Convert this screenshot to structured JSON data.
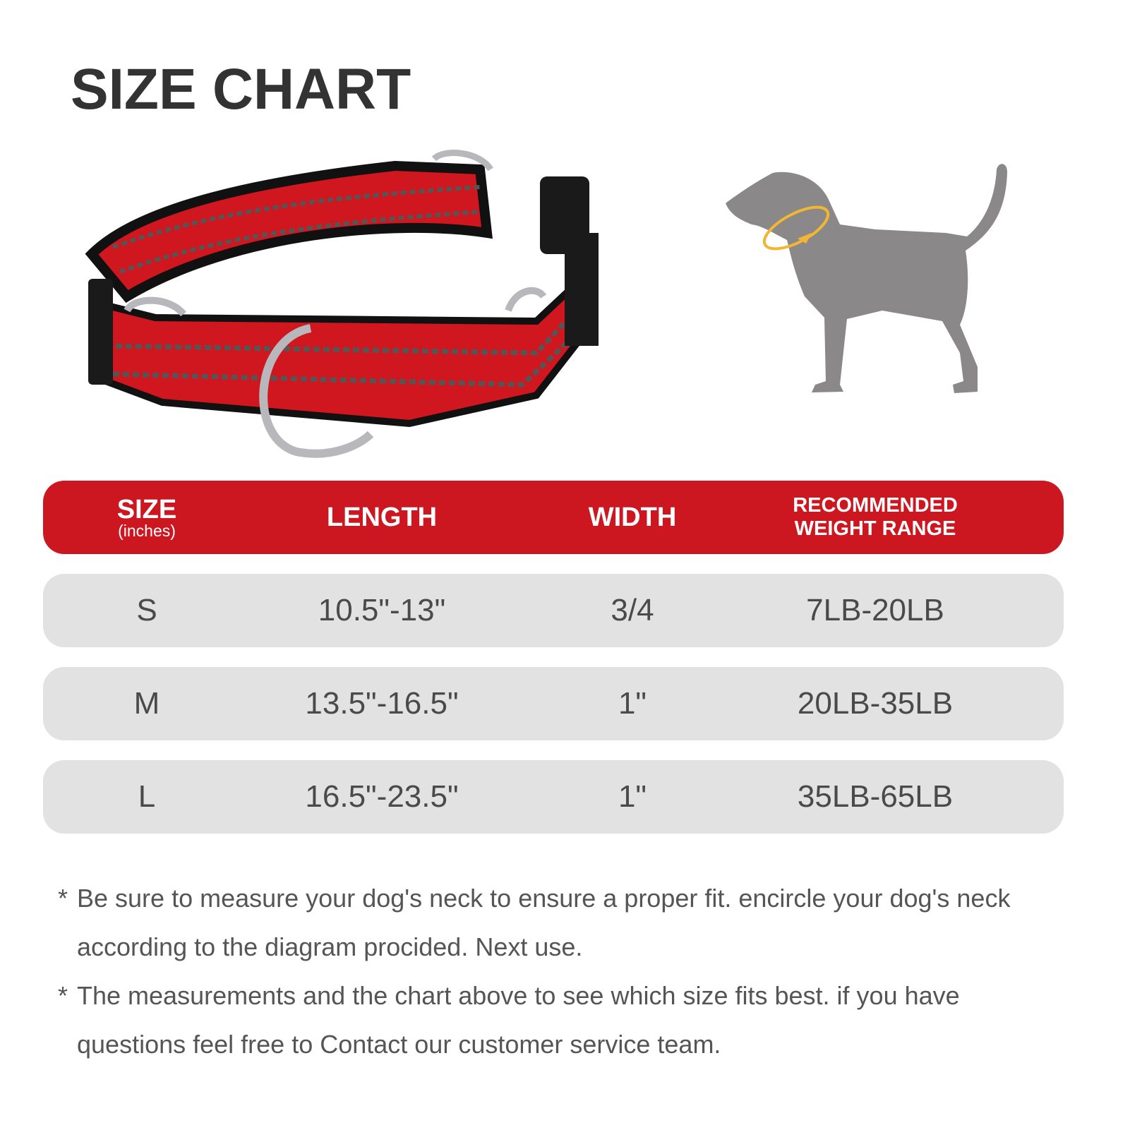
{
  "title": "SIZE CHART",
  "colors": {
    "header_red": "#cc1620",
    "row_gray": "#e2e2e2",
    "collar_red": "#d0161e",
    "dog_gray": "#8a8889",
    "measure_yellow": "#f2b632"
  },
  "illustrations": {
    "left": "martingale-collar",
    "right": "dog-silhouette-neck-measure"
  },
  "table": {
    "headers": {
      "size": "SIZE",
      "size_unit": "(inches)",
      "length": "LENGTH",
      "width": "WIDTH",
      "weight_line1": "RECOMMENDED",
      "weight_line2": "WEIGHT RANGE"
    },
    "rows": [
      {
        "size": "S",
        "length": "10.5\"-13\"",
        "width": "3/4",
        "weight": "7LB-20LB"
      },
      {
        "size": "M",
        "length": "13.5\"-16.5\"",
        "width": "1\"",
        "weight": "20LB-35LB"
      },
      {
        "size": "L",
        "length": "16.5\"-23.5\"",
        "width": "1\"",
        "weight": "35LB-65LB"
      }
    ]
  },
  "notes": [
    {
      "marker": "*",
      "text": "Be sure to measure your dog's neck to ensure a proper fit. encircle your dog's neck according to the diagram procided. Next use."
    },
    {
      "marker": "*",
      "text": "The measurements and the chart above to see which size fits best. if you have questions feel free to Contact our customer service team."
    }
  ]
}
